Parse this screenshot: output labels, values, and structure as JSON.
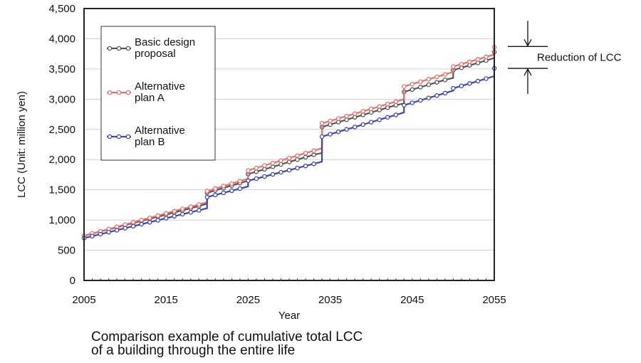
{
  "chart_data": {
    "type": "line",
    "title": "",
    "xlabel": "Year",
    "ylabel": "LCC (Unit: million yen)",
    "xlim": [
      2005,
      2055
    ],
    "ylim": [
      0,
      4500
    ],
    "x_ticks": [
      "2005",
      "2015",
      "2025",
      "2035",
      "2045",
      "2055"
    ],
    "y_ticks": [
      "0",
      "500",
      "1,000",
      "1,500",
      "2,000",
      "2,500",
      "3,000",
      "3,500",
      "4,000",
      "4,500"
    ],
    "grid": true,
    "legend_position": "top-left",
    "series": [
      {
        "name_lines": [
          "Basic design",
          "proposal"
        ],
        "color": "#555555",
        "points": [
          [
            2005,
            740
          ],
          [
            2006,
            775
          ],
          [
            2007,
            810
          ],
          [
            2008,
            845
          ],
          [
            2009,
            880
          ],
          [
            2010,
            915
          ],
          [
            2011,
            950
          ],
          [
            2012,
            985
          ],
          [
            2013,
            1020
          ],
          [
            2014,
            1055
          ],
          [
            2015,
            1090
          ],
          [
            2016,
            1125
          ],
          [
            2017,
            1160
          ],
          [
            2018,
            1195
          ],
          [
            2019,
            1230
          ],
          [
            2019.99,
            1270
          ],
          [
            2020,
            1450
          ],
          [
            2021,
            1490
          ],
          [
            2022,
            1530
          ],
          [
            2023,
            1570
          ],
          [
            2024,
            1610
          ],
          [
            2024.99,
            1650
          ],
          [
            2025,
            1760
          ],
          [
            2026,
            1800
          ],
          [
            2027,
            1840
          ],
          [
            2028,
            1880
          ],
          [
            2029,
            1920
          ],
          [
            2030,
            1960
          ],
          [
            2031,
            2000
          ],
          [
            2032,
            2040
          ],
          [
            2033,
            2080
          ],
          [
            2033.99,
            2110
          ],
          [
            2034,
            2540
          ],
          [
            2035,
            2580
          ],
          [
            2036,
            2620
          ],
          [
            2037,
            2660
          ],
          [
            2038,
            2700
          ],
          [
            2039,
            2740
          ],
          [
            2040,
            2780
          ],
          [
            2041,
            2820
          ],
          [
            2042,
            2860
          ],
          [
            2043,
            2900
          ],
          [
            2043.99,
            2930
          ],
          [
            2044,
            3120
          ],
          [
            2045,
            3160
          ],
          [
            2046,
            3200
          ],
          [
            2047,
            3240
          ],
          [
            2048,
            3280
          ],
          [
            2049,
            3320
          ],
          [
            2049.99,
            3350
          ],
          [
            2050,
            3480
          ],
          [
            2051,
            3520
          ],
          [
            2052,
            3560
          ],
          [
            2053,
            3600
          ],
          [
            2054,
            3640
          ],
          [
            2054.99,
            3680
          ],
          [
            2055,
            3780
          ]
        ]
      },
      {
        "name_lines": [
          "Alternative",
          "plan A"
        ],
        "color": "#e8706a",
        "points": [
          [
            2005,
            740
          ],
          [
            2006,
            777
          ],
          [
            2007,
            814
          ],
          [
            2008,
            851
          ],
          [
            2009,
            888
          ],
          [
            2010,
            925
          ],
          [
            2011,
            962
          ],
          [
            2012,
            999
          ],
          [
            2013,
            1036
          ],
          [
            2014,
            1073
          ],
          [
            2015,
            1110
          ],
          [
            2016,
            1147
          ],
          [
            2017,
            1184
          ],
          [
            2018,
            1221
          ],
          [
            2019,
            1258
          ],
          [
            2019.99,
            1295
          ],
          [
            2020,
            1480
          ],
          [
            2021,
            1521
          ],
          [
            2022,
            1562
          ],
          [
            2023,
            1603
          ],
          [
            2024,
            1644
          ],
          [
            2024.99,
            1685
          ],
          [
            2025,
            1820
          ],
          [
            2026,
            1861
          ],
          [
            2027,
            1902
          ],
          [
            2028,
            1943
          ],
          [
            2029,
            1984
          ],
          [
            2030,
            2025
          ],
          [
            2031,
            2066
          ],
          [
            2032,
            2107
          ],
          [
            2033,
            2148
          ],
          [
            2033.99,
            2189
          ],
          [
            2034,
            2600
          ],
          [
            2035,
            2640
          ],
          [
            2036,
            2680
          ],
          [
            2037,
            2720
          ],
          [
            2038,
            2760
          ],
          [
            2039,
            2800
          ],
          [
            2040,
            2840
          ],
          [
            2041,
            2880
          ],
          [
            2042,
            2920
          ],
          [
            2043,
            2960
          ],
          [
            2043.99,
            3000
          ],
          [
            2044,
            3210
          ],
          [
            2045,
            3250
          ],
          [
            2046,
            3290
          ],
          [
            2047,
            3330
          ],
          [
            2048,
            3370
          ],
          [
            2049,
            3410
          ],
          [
            2049.99,
            3450
          ],
          [
            2050,
            3540
          ],
          [
            2051,
            3580
          ],
          [
            2052,
            3620
          ],
          [
            2053,
            3660
          ],
          [
            2054,
            3700
          ],
          [
            2054.99,
            3740
          ],
          [
            2055,
            3860
          ]
        ]
      },
      {
        "name_lines": [
          "Alternative",
          "plan B"
        ],
        "color": "#3d46b5",
        "points": [
          [
            2005,
            700
          ],
          [
            2006,
            733
          ],
          [
            2007,
            766
          ],
          [
            2008,
            799
          ],
          [
            2009,
            832
          ],
          [
            2010,
            865
          ],
          [
            2011,
            898
          ],
          [
            2012,
            931
          ],
          [
            2013,
            964
          ],
          [
            2014,
            997
          ],
          [
            2015,
            1030
          ],
          [
            2016,
            1063
          ],
          [
            2017,
            1096
          ],
          [
            2018,
            1129
          ],
          [
            2019,
            1162
          ],
          [
            2019.99,
            1195
          ],
          [
            2020,
            1380
          ],
          [
            2021,
            1415
          ],
          [
            2022,
            1450
          ],
          [
            2023,
            1485
          ],
          [
            2024,
            1520
          ],
          [
            2024.99,
            1555
          ],
          [
            2025,
            1650
          ],
          [
            2026,
            1685
          ],
          [
            2027,
            1720
          ],
          [
            2028,
            1755
          ],
          [
            2029,
            1790
          ],
          [
            2030,
            1825
          ],
          [
            2031,
            1860
          ],
          [
            2032,
            1895
          ],
          [
            2033,
            1930
          ],
          [
            2033.99,
            1965
          ],
          [
            2034,
            2380
          ],
          [
            2035,
            2420
          ],
          [
            2036,
            2460
          ],
          [
            2037,
            2500
          ],
          [
            2038,
            2540
          ],
          [
            2039,
            2580
          ],
          [
            2040,
            2620
          ],
          [
            2041,
            2660
          ],
          [
            2042,
            2700
          ],
          [
            2043,
            2740
          ],
          [
            2043.99,
            2780
          ],
          [
            2044,
            2900
          ],
          [
            2045,
            2940
          ],
          [
            2046,
            2980
          ],
          [
            2047,
            3020
          ],
          [
            2048,
            3060
          ],
          [
            2049,
            3100
          ],
          [
            2049.99,
            3140
          ],
          [
            2050,
            3180
          ],
          [
            2051,
            3220
          ],
          [
            2052,
            3260
          ],
          [
            2053,
            3300
          ],
          [
            2054,
            3340
          ],
          [
            2054.99,
            3380
          ],
          [
            2055,
            3510
          ]
        ]
      }
    ],
    "annotation": {
      "label": "Reduction of LCC",
      "from_value": 3860,
      "to_value": 3510
    }
  },
  "caption": {
    "line1": "Comparison example of cumulative total LCC",
    "line2": "of a building through the entire life"
  }
}
